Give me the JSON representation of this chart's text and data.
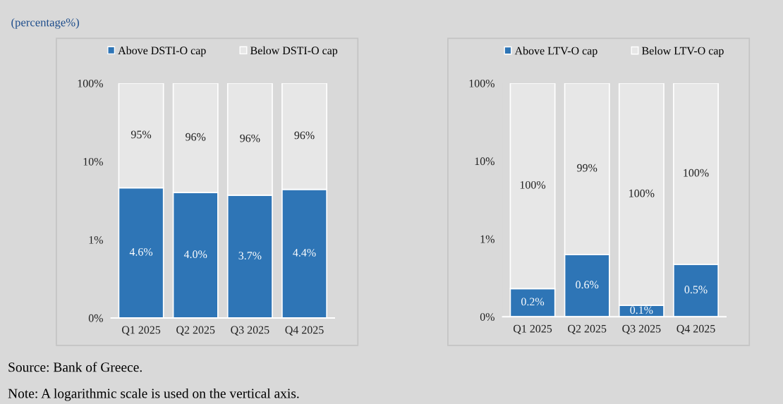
{
  "chart_data": [
    {
      "type": "bar",
      "stacked": true,
      "log": "y",
      "categories": [
        "Q1 2025",
        "Q2 2025",
        "Q3 2025",
        "Q4 2025"
      ],
      "series": [
        {
          "name": "Above DSTI-O cap",
          "color": "#2e75b6",
          "values": [
            4.6,
            4.0,
            3.7,
            4.4
          ],
          "value_labels": [
            "4.6%",
            "4.0%",
            "3.7%",
            "4.4%"
          ]
        },
        {
          "name": "Below DSTI-O cap",
          "color": "#e7e7e7",
          "values": [
            95.4,
            96.0,
            96.3,
            95.6
          ],
          "value_labels": [
            "95%",
            "96%",
            "96%",
            "96%"
          ]
        }
      ],
      "ylim": [
        0.1,
        100
      ],
      "yticks": [
        {
          "value": 0.1,
          "label": "0%"
        },
        {
          "value": 1,
          "label": "1%"
        },
        {
          "value": 10,
          "label": "10%"
        },
        {
          "value": 100,
          "label": "100%"
        }
      ],
      "grid": false,
      "legend": "top",
      "annotations": [
        "(percentage%)",
        "Source: Bank of Greece.",
        "Note: A logarithmic scale is used on the vertical axis."
      ]
    },
    {
      "type": "bar",
      "stacked": true,
      "log": "y",
      "categories": [
        "Q1 2025",
        "Q2 2025",
        "Q3 2025",
        "Q4 2025"
      ],
      "series": [
        {
          "name": "Above LTV-O cap",
          "color": "#2e75b6",
          "values": [
            0.23,
            0.63,
            0.14,
            0.47
          ],
          "value_labels": [
            "0.2%",
            "0.6%",
            "0.1%",
            "0.5%"
          ]
        },
        {
          "name": "Below LTV-O cap",
          "color": "#e7e7e7",
          "values": [
            99.77,
            99.37,
            99.86,
            99.53
          ],
          "value_labels": [
            "100%",
            "99%",
            "100%",
            "100%"
          ]
        }
      ],
      "ylim": [
        0.1,
        100
      ],
      "yticks": [
        {
          "value": 0.1,
          "label": "0%"
        },
        {
          "value": 1,
          "label": "1%"
        },
        {
          "value": 10,
          "label": "10%"
        },
        {
          "value": 100,
          "label": "100%"
        }
      ],
      "grid": false,
      "legend": "top"
    }
  ]
}
